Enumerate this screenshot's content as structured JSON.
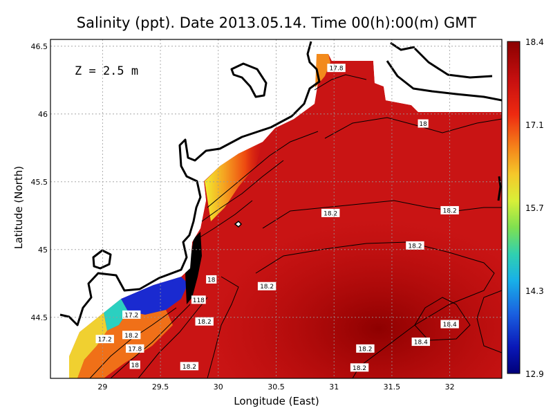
{
  "title": "Salinity (ppt). Date 2013.05.14. Time 00(h):00(m) GMT",
  "depth_label": "Z = 2.5 m",
  "xlabel": "Longitude (East)",
  "ylabel": "Latitude (North)",
  "x_ticks": [
    "29",
    "29.5",
    "30",
    "30.5",
    "31",
    "31.5",
    "32"
  ],
  "y_ticks": [
    "44.5",
    "45",
    "45.5",
    "46",
    "46.5"
  ],
  "colorbar": {
    "ticks": [
      "18.4",
      "17.1",
      "15.7",
      "14.3",
      "12.9"
    ],
    "colors": [
      "#8b0000",
      "#c81010",
      "#f03c10",
      "#f59e1a",
      "#f2e830",
      "#8fe04a",
      "#2ec8d0",
      "#1f6fe0",
      "#0a0a9a",
      "#000080"
    ]
  },
  "chart_data": {
    "type": "heatmap",
    "variable": "Salinity (ppt)",
    "xlim": [
      28.55,
      32.45
    ],
    "ylim": [
      44.05,
      46.55
    ],
    "value_range": [
      12.9,
      18.4
    ],
    "grid": true,
    "contour_labels": [
      {
        "text": "17.8",
        "lon": 31.02,
        "lat": 46.34
      },
      {
        "text": "18",
        "lon": 31.77,
        "lat": 45.93
      },
      {
        "text": "18.2",
        "lon": 30.97,
        "lat": 45.27
      },
      {
        "text": "18.2",
        "lon": 32.0,
        "lat": 45.29
      },
      {
        "text": "18.2",
        "lon": 31.7,
        "lat": 45.03
      },
      {
        "text": "18.2",
        "lon": 30.42,
        "lat": 44.73
      },
      {
        "text": "18",
        "lon": 29.94,
        "lat": 44.78
      },
      {
        "text": "18.2",
        "lon": 29.88,
        "lat": 44.47
      },
      {
        "text": "18.4",
        "lon": 32.0,
        "lat": 44.45
      },
      {
        "text": "18.4",
        "lon": 31.75,
        "lat": 44.32
      },
      {
        "text": "18.2",
        "lon": 31.27,
        "lat": 44.27
      },
      {
        "text": "18.2",
        "lon": 31.22,
        "lat": 44.13
      },
      {
        "text": "18.2",
        "lon": 29.75,
        "lat": 44.14
      },
      {
        "text": "18",
        "lon": 29.28,
        "lat": 44.15
      },
      {
        "text": "17.8",
        "lon": 29.28,
        "lat": 44.27
      },
      {
        "text": "17.2",
        "lon": 29.02,
        "lat": 44.34
      },
      {
        "text": "17.2",
        "lon": 29.25,
        "lat": 44.52
      },
      {
        "text": "18.2",
        "lon": 29.25,
        "lat": 44.37
      },
      {
        "text": "118",
        "lon": 29.83,
        "lat": 44.63
      }
    ]
  }
}
